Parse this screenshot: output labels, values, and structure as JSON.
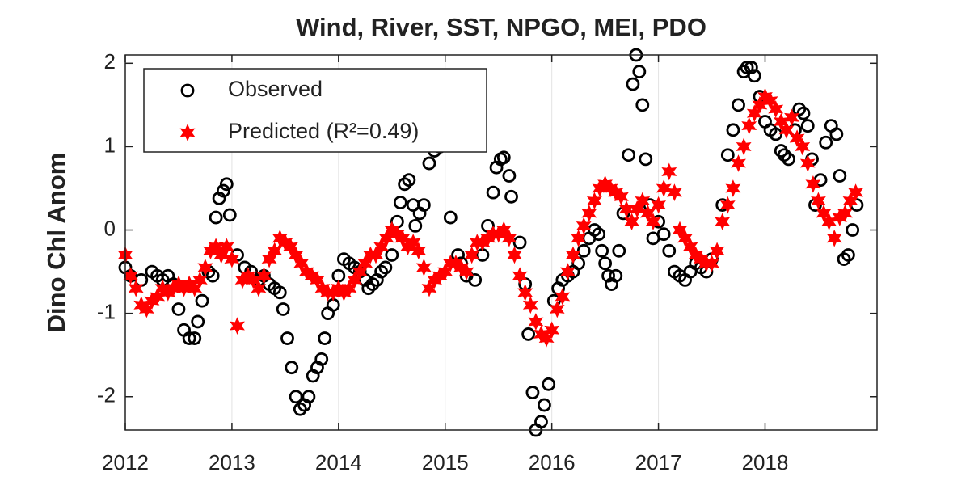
{
  "chart_data": {
    "type": "scatter",
    "title": "Wind, River, SST, NPGO, MEI, PDO",
    "y_label": "Dino Chl Anom",
    "xlim": [
      2012,
      2019.05
    ],
    "xticks": [
      2012,
      2013,
      2014,
      2015,
      2016,
      2017,
      2018
    ],
    "ylim": [
      -2.4,
      2.1
    ],
    "yticks": [
      -2,
      -1,
      0,
      1,
      2
    ],
    "grid": "x",
    "legend": "upper-left",
    "series": [
      {
        "name": "Observed",
        "color": "#000000",
        "marker": "circle",
        "x": [
          2012.0,
          2012.05,
          2012.15,
          2012.25,
          2012.3,
          2012.35,
          2012.4,
          2012.45,
          2012.5,
          2012.55,
          2012.6,
          2012.65,
          2012.68,
          2012.72,
          2012.78,
          2012.82,
          2012.85,
          2012.88,
          2012.92,
          2012.95,
          2012.98,
          2013.05,
          2013.12,
          2013.18,
          2013.25,
          2013.3,
          2013.35,
          2013.4,
          2013.45,
          2013.48,
          2013.52,
          2013.56,
          2013.6,
          2013.64,
          2013.68,
          2013.72,
          2013.76,
          2013.8,
          2013.84,
          2013.87,
          2013.9,
          2013.95,
          2014.0,
          2014.05,
          2014.1,
          2014.15,
          2014.2,
          2014.25,
          2014.28,
          2014.32,
          2014.36,
          2014.4,
          2014.44,
          2014.5,
          2014.55,
          2014.58,
          2014.62,
          2014.66,
          2014.7,
          2014.72,
          2014.76,
          2014.8,
          2014.85,
          2014.9,
          2014.95,
          2015.05,
          2015.12,
          2015.15,
          2015.2,
          2015.28,
          2015.35,
          2015.4,
          2015.45,
          2015.48,
          2015.52,
          2015.55,
          2015.6,
          2015.62,
          2015.7,
          2015.75,
          2015.78,
          2015.82,
          2015.85,
          2015.9,
          2015.93,
          2015.97,
          2016.02,
          2016.06,
          2016.1,
          2016.15,
          2016.2,
          2016.25,
          2016.3,
          2016.35,
          2016.4,
          2016.44,
          2016.47,
          2016.5,
          2016.53,
          2016.56,
          2016.6,
          2016.63,
          2016.67,
          2016.72,
          2016.76,
          2016.79,
          2016.82,
          2016.85,
          2016.88,
          2016.92,
          2016.95,
          2017.0,
          2017.05,
          2017.1,
          2017.15,
          2017.2,
          2017.25,
          2017.3,
          2017.35,
          2017.4,
          2017.45,
          2017.5,
          2017.6,
          2017.65,
          2017.7,
          2017.75,
          2017.8,
          2017.83,
          2017.87,
          2017.9,
          2017.95,
          2018.0,
          2018.05,
          2018.1,
          2018.15,
          2018.18,
          2018.22,
          2018.28,
          2018.32,
          2018.36,
          2018.4,
          2018.44,
          2018.47,
          2018.52,
          2018.57,
          2018.62,
          2018.67,
          2018.7,
          2018.74,
          2018.78,
          2018.82,
          2018.86
        ],
        "values": [
          -0.45,
          -0.55,
          -0.6,
          -0.5,
          -0.55,
          -0.6,
          -0.55,
          -0.65,
          -0.95,
          -1.2,
          -1.3,
          -1.3,
          -1.1,
          -0.85,
          -0.5,
          -0.55,
          0.15,
          0.38,
          0.47,
          0.55,
          0.18,
          -0.3,
          -0.45,
          -0.5,
          -0.6,
          -0.55,
          -0.65,
          -0.7,
          -0.75,
          -0.95,
          -1.3,
          -1.65,
          -2.0,
          -2.15,
          -2.1,
          -2.0,
          -1.75,
          -1.65,
          -1.55,
          -1.3,
          -1.0,
          -0.9,
          -0.55,
          -0.35,
          -0.4,
          -0.45,
          -0.5,
          -0.6,
          -0.7,
          -0.65,
          -0.6,
          -0.5,
          -0.45,
          -0.3,
          0.1,
          0.33,
          0.55,
          0.6,
          0.3,
          0.05,
          0.2,
          0.3,
          0.8,
          0.95,
          1.0,
          0.15,
          -0.3,
          -0.4,
          -0.55,
          -0.6,
          -0.3,
          0.05,
          0.45,
          0.75,
          0.85,
          0.87,
          0.65,
          0.4,
          -0.15,
          -0.65,
          -1.25,
          -1.95,
          -2.4,
          -2.3,
          -2.1,
          -1.85,
          -0.85,
          -0.7,
          -0.6,
          -0.55,
          -0.5,
          -0.4,
          -0.25,
          -0.1,
          0.0,
          -0.05,
          -0.25,
          -0.4,
          -0.55,
          -0.65,
          -0.55,
          -0.25,
          0.2,
          0.9,
          1.75,
          2.1,
          1.9,
          1.5,
          0.85,
          0.3,
          -0.1,
          0.1,
          -0.05,
          -0.25,
          -0.5,
          -0.55,
          -0.6,
          -0.5,
          -0.4,
          -0.45,
          -0.5,
          -0.35,
          0.3,
          0.9,
          1.2,
          1.5,
          1.9,
          1.95,
          1.95,
          1.85,
          1.6,
          1.3,
          1.2,
          1.15,
          0.95,
          0.9,
          0.85,
          1.2,
          1.45,
          1.4,
          1.25,
          0.85,
          0.3,
          0.6,
          1.05,
          1.25,
          1.15,
          0.65,
          -0.35,
          -0.3,
          0.0,
          0.3
        ]
      },
      {
        "name": "Predicted (R²=0.49)",
        "color": "#ff0000",
        "marker": "star",
        "x": [
          2012.0,
          2012.05,
          2012.1,
          2012.15,
          2012.2,
          2012.25,
          2012.3,
          2012.35,
          2012.4,
          2012.45,
          2012.5,
          2012.55,
          2012.6,
          2012.65,
          2012.7,
          2012.75,
          2012.8,
          2012.85,
          2012.9,
          2012.95,
          2013.0,
          2013.05,
          2013.1,
          2013.15,
          2013.2,
          2013.25,
          2013.3,
          2013.35,
          2013.4,
          2013.45,
          2013.5,
          2013.55,
          2013.6,
          2013.65,
          2013.7,
          2013.75,
          2013.8,
          2013.85,
          2013.9,
          2013.95,
          2014.0,
          2014.05,
          2014.1,
          2014.15,
          2014.2,
          2014.25,
          2014.3,
          2014.35,
          2014.4,
          2014.45,
          2014.5,
          2014.55,
          2014.6,
          2014.65,
          2014.7,
          2014.75,
          2014.8,
          2014.85,
          2014.9,
          2014.95,
          2015.0,
          2015.05,
          2015.1,
          2015.15,
          2015.2,
          2015.25,
          2015.3,
          2015.35,
          2015.4,
          2015.45,
          2015.5,
          2015.55,
          2015.6,
          2015.65,
          2015.7,
          2015.75,
          2015.8,
          2015.85,
          2015.9,
          2015.95,
          2016.0,
          2016.05,
          2016.1,
          2016.15,
          2016.2,
          2016.25,
          2016.3,
          2016.35,
          2016.4,
          2016.45,
          2016.5,
          2016.55,
          2016.6,
          2016.65,
          2016.7,
          2016.75,
          2016.8,
          2016.85,
          2016.9,
          2016.95,
          2017.0,
          2017.05,
          2017.1,
          2017.15,
          2017.2,
          2017.25,
          2017.3,
          2017.35,
          2017.4,
          2017.45,
          2017.5,
          2017.55,
          2017.6,
          2017.65,
          2017.7,
          2017.75,
          2017.8,
          2017.85,
          2017.9,
          2017.95,
          2018.0,
          2018.05,
          2018.1,
          2018.15,
          2018.2,
          2018.25,
          2018.3,
          2018.35,
          2018.4,
          2018.45,
          2018.5,
          2018.55,
          2018.6,
          2018.65,
          2018.7,
          2018.75,
          2018.8,
          2018.85
        ],
        "values": [
          -0.3,
          -0.55,
          -0.7,
          -0.9,
          -0.95,
          -0.85,
          -0.8,
          -0.7,
          -0.75,
          -0.7,
          -0.65,
          -0.7,
          -0.65,
          -0.7,
          -0.6,
          -0.45,
          -0.25,
          -0.2,
          -0.3,
          -0.2,
          -0.35,
          -1.15,
          -0.6,
          -0.55,
          -0.6,
          -0.7,
          -0.55,
          -0.35,
          -0.25,
          -0.1,
          -0.15,
          -0.2,
          -0.3,
          -0.4,
          -0.5,
          -0.55,
          -0.6,
          -0.7,
          -0.75,
          -0.75,
          -0.7,
          -0.75,
          -0.7,
          -0.6,
          -0.5,
          -0.4,
          -0.3,
          -0.3,
          -0.2,
          -0.1,
          0.0,
          -0.05,
          -0.1,
          -0.2,
          -0.15,
          -0.25,
          -0.45,
          -0.7,
          -0.6,
          -0.55,
          -0.5,
          -0.4,
          -0.4,
          -0.45,
          -0.5,
          -0.3,
          -0.15,
          -0.15,
          -0.1,
          -0.05,
          -0.05,
          0.0,
          -0.1,
          -0.3,
          -0.55,
          -0.75,
          -0.9,
          -1.1,
          -1.25,
          -1.3,
          -1.2,
          -0.95,
          -0.8,
          -0.5,
          -0.3,
          -0.1,
          0.05,
          0.2,
          0.35,
          0.5,
          0.55,
          0.5,
          0.45,
          0.4,
          0.25,
          0.1,
          0.25,
          0.35,
          0.2,
          0.1,
          0.3,
          0.5,
          0.7,
          0.45,
          0.0,
          -0.1,
          -0.2,
          -0.3,
          -0.35,
          -0.4,
          -0.4,
          -0.25,
          0.1,
          0.3,
          0.5,
          0.8,
          1.0,
          1.25,
          1.4,
          1.5,
          1.6,
          1.55,
          1.45,
          1.3,
          1.2,
          1.35,
          1.1,
          1.0,
          0.8,
          0.55,
          0.35,
          0.2,
          0.1,
          -0.1,
          0.15,
          0.2,
          0.35,
          0.45
        ]
      }
    ]
  }
}
